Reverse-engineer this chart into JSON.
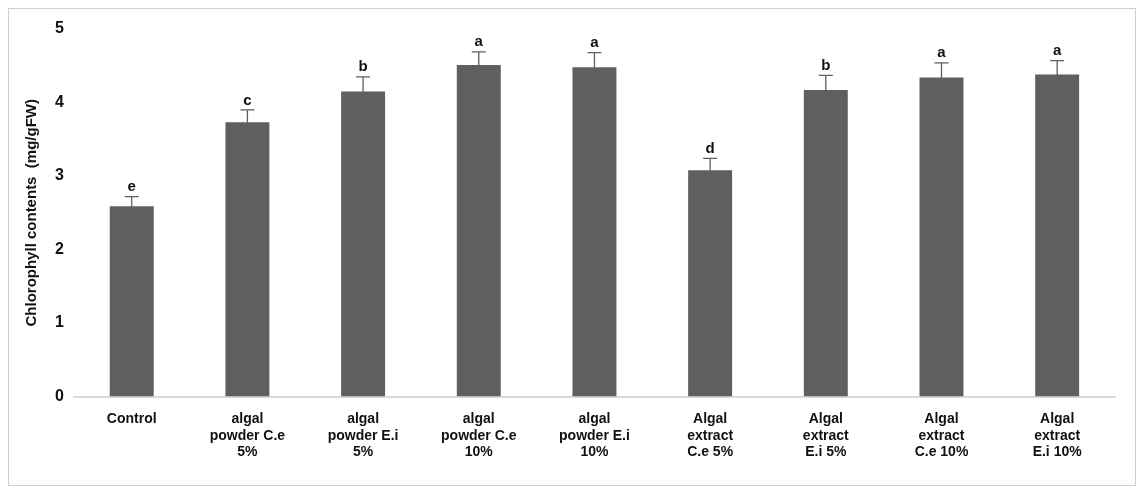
{
  "chart_data": {
    "type": "bar",
    "ylabel": "Chlorophyll contents  (mg/gFW)",
    "categories": [
      "Control",
      "algal powder C.e 5%",
      "algal powder E.i 5%",
      "algal powder C.e 10%",
      "algal powder E.i 10%",
      "Algal extract C.e 5%",
      "Algal extract E.i 5%",
      "Algal extract C.e 10%",
      "Algal extract E.i 10%"
    ],
    "values": [
      2.59,
      3.73,
      4.15,
      4.51,
      4.48,
      3.08,
      4.17,
      4.34,
      4.38
    ],
    "errors": [
      0.13,
      0.17,
      0.2,
      0.18,
      0.2,
      0.16,
      0.2,
      0.2,
      0.19
    ],
    "color": "#5f5f5f",
    "ylim": [
      0,
      5
    ],
    "yticks": [
      0,
      1,
      2,
      3,
      4,
      5
    ],
    "grid": false,
    "legend": false,
    "annotations": [
      {
        "text": "e",
        "x": "Control",
        "y": 2.72
      },
      {
        "text": "c",
        "x": "algal powder C.e 5%",
        "y": 3.9
      },
      {
        "text": "b",
        "x": "algal powder E.i 5%",
        "y": 4.35
      },
      {
        "text": "a",
        "x": "algal powder C.e 10%",
        "y": 4.69
      },
      {
        "text": "a",
        "x": "algal powder E.i 10%",
        "y": 4.68
      },
      {
        "text": "d",
        "x": "Algal extract C.e 5%",
        "y": 3.24
      },
      {
        "text": "b",
        "x": "Algal extract E.i 5%",
        "y": 4.37
      },
      {
        "text": "a",
        "x": "Algal extract C.e 10%",
        "y": 4.54
      },
      {
        "text": "a",
        "x": "Algal extract E.i 10%",
        "y": 4.57
      }
    ]
  }
}
